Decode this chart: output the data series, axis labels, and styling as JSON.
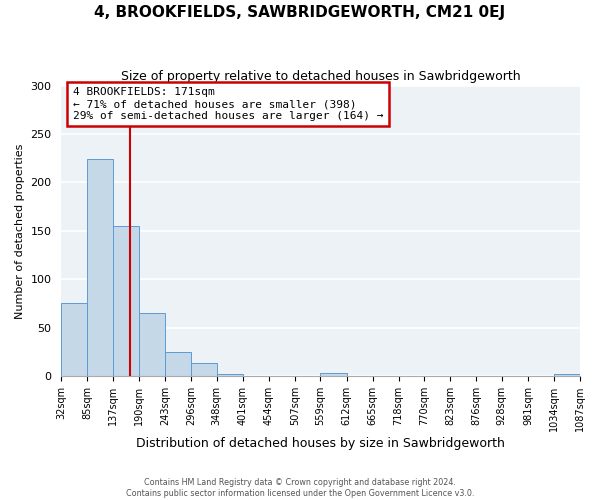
{
  "title": "4, BROOKFIELDS, SAWBRIDGEWORTH, CM21 0EJ",
  "subtitle": "Size of property relative to detached houses in Sawbridgeworth",
  "xlabel": "Distribution of detached houses by size in Sawbridgeworth",
  "ylabel": "Number of detached properties",
  "footer_line1": "Contains HM Land Registry data © Crown copyright and database right 2024.",
  "footer_line2": "Contains public sector information licensed under the Open Government Licence v3.0.",
  "bin_edges": [
    32,
    85,
    137,
    190,
    243,
    296,
    348,
    401,
    454,
    507,
    559,
    612,
    665,
    718,
    770,
    823,
    876,
    928,
    981,
    1034,
    1087
  ],
  "bar_heights": [
    76,
    224,
    155,
    65,
    25,
    14,
    2,
    0,
    0,
    0,
    3,
    0,
    0,
    0,
    0,
    0,
    0,
    0,
    0,
    2
  ],
  "bar_color": "#c5d8e8",
  "bar_edge_color": "#5b9bd5",
  "vline_x": 171,
  "vline_color": "#cc0000",
  "annotation_title": "4 BROOKFIELDS: 171sqm",
  "annotation_line1": "← 71% of detached houses are smaller (398)",
  "annotation_line2": "29% of semi-detached houses are larger (164) →",
  "annotation_box_color": "#cc0000",
  "ylim": [
    0,
    300
  ],
  "yticks": [
    0,
    50,
    100,
    150,
    200,
    250,
    300
  ],
  "background_color": "#edf2f7",
  "grid_color": "#ffffff",
  "tick_labels": [
    "32sqm",
    "85sqm",
    "137sqm",
    "190sqm",
    "243sqm",
    "296sqm",
    "348sqm",
    "401sqm",
    "454sqm",
    "507sqm",
    "559sqm",
    "612sqm",
    "665sqm",
    "718sqm",
    "770sqm",
    "823sqm",
    "876sqm",
    "928sqm",
    "981sqm",
    "1034sqm",
    "1087sqm"
  ],
  "title_fontsize": 11,
  "subtitle_fontsize": 9,
  "xlabel_fontsize": 9,
  "ylabel_fontsize": 8,
  "annotation_fontsize": 8,
  "ytick_fontsize": 8,
  "xtick_fontsize": 7
}
